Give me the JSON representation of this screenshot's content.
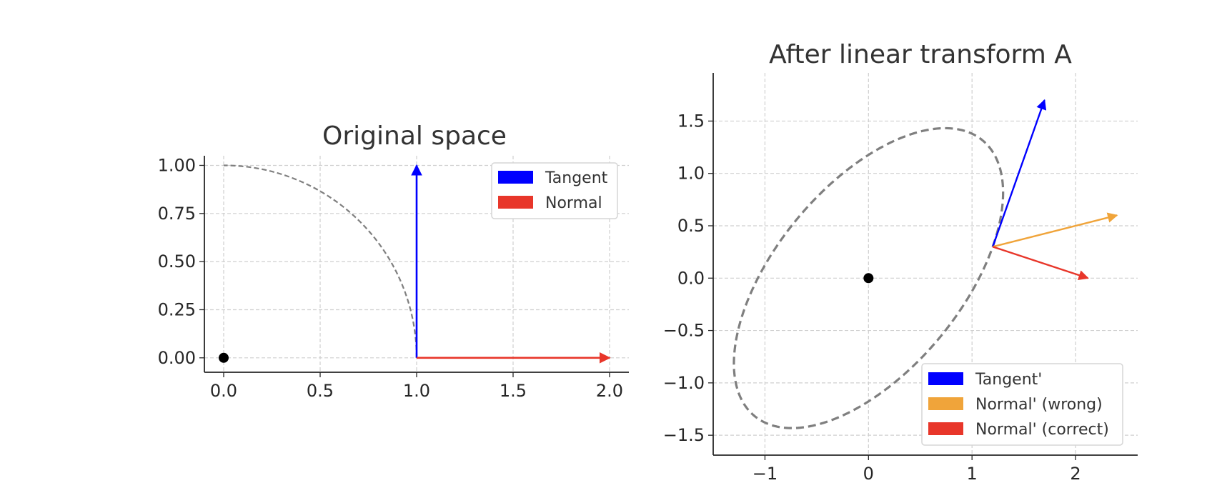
{
  "chart_data": [
    {
      "type": "line",
      "title": "Original space",
      "xlim": [
        -0.1,
        2.1
      ],
      "ylim": [
        -0.075,
        1.05
      ],
      "xticks": [
        0.0,
        0.5,
        1.0,
        1.5,
        2.0
      ],
      "xtick_labels": [
        "0.0",
        "0.5",
        "1.0",
        "1.5",
        "2.0"
      ],
      "yticks": [
        0.0,
        0.25,
        0.5,
        0.75,
        1.0
      ],
      "ytick_labels": [
        "0.00",
        "0.25",
        "0.50",
        "0.75",
        "1.00"
      ],
      "grid": true,
      "legend_position": "top-right",
      "curve": {
        "kind": "quarter circle",
        "center": [
          0,
          0
        ],
        "radius": 1,
        "theta_range_deg": [
          0,
          90
        ],
        "color": "#7f7f7f",
        "style": "dashed"
      },
      "origin_point": {
        "x": 0,
        "y": 0,
        "color": "#000000"
      },
      "arrows": [
        {
          "name": "Tangent",
          "from": [
            1,
            0
          ],
          "to": [
            1,
            1
          ],
          "color": "#0000ff"
        },
        {
          "name": "Normal",
          "from": [
            1,
            0
          ],
          "to": [
            2,
            0
          ],
          "color": "#e8362a"
        }
      ],
      "legend": [
        {
          "label": "Tangent",
          "color": "#0000ff"
        },
        {
          "label": "Normal",
          "color": "#e8362a"
        }
      ]
    },
    {
      "type": "line",
      "title": "After linear transform A",
      "xlim": [
        -1.5,
        2.6
      ],
      "ylim": [
        -1.69,
        1.96
      ],
      "xticks": [
        -1,
        0,
        1,
        2
      ],
      "xtick_labels": [
        "−1",
        "0",
        "1",
        "2"
      ],
      "yticks": [
        -1.5,
        -1.0,
        -0.5,
        0.0,
        0.5,
        1.0,
        1.5
      ],
      "ytick_labels": [
        "−1.5",
        "−1.0",
        "−0.5",
        "0.0",
        "0.5",
        "1.0",
        "1.5"
      ],
      "grid": true,
      "legend_position": "bottom-right",
      "curve": {
        "kind": "transformed unit circle (ellipse)",
        "matrix_A": [
          [
            1.2,
            0.5
          ],
          [
            0.3,
            1.4
          ]
        ],
        "color": "#7f7f7f",
        "style": "dashed"
      },
      "origin_point": {
        "x": 0,
        "y": 0,
        "color": "#000000"
      },
      "arrows": [
        {
          "name": "Tangent'",
          "from": [
            1.2,
            0.3
          ],
          "to": [
            1.7,
            1.7
          ],
          "color": "#0000ff"
        },
        {
          "name": "Normal' (wrong)",
          "from": [
            1.2,
            0.3
          ],
          "to": [
            2.4,
            0.6
          ],
          "color": "#f0a43a"
        },
        {
          "name": "Normal' (correct)",
          "from": [
            1.2,
            0.3
          ],
          "to": [
            2.12,
            0.0
          ],
          "color": "#e8362a"
        }
      ],
      "legend": [
        {
          "label": "Tangent'",
          "color": "#0000ff"
        },
        {
          "label": "Normal' (wrong)",
          "color": "#f0a43a"
        },
        {
          "label": "Normal' (correct)",
          "color": "#e8362a"
        }
      ]
    }
  ]
}
